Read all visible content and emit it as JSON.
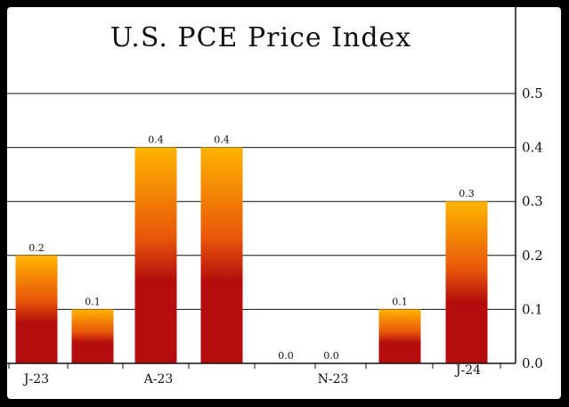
{
  "chart_data": {
    "type": "bar",
    "title": "U.S. PCE Price Index",
    "xlabel": "",
    "ylabel": "",
    "categories": [
      "J-23",
      "",
      "A-23",
      "",
      "",
      "N-23",
      "",
      "J-24"
    ],
    "values": [
      0.2,
      0.1,
      0.4,
      0.4,
      0.0,
      0.0,
      0.1,
      0.3
    ],
    "data_labels": [
      "0.2",
      "0.1",
      "0.4",
      "0.4",
      "0.0",
      "0.0",
      "0.1",
      "0.3"
    ],
    "y_ticks": [
      "0.0",
      "0.1",
      "0.2",
      "0.3",
      "0.4",
      "0.5"
    ],
    "ylim": [
      0,
      0.5
    ],
    "grid": true,
    "y_axis_side": "right",
    "colors": {
      "bar_top": "#ffb400",
      "bar_mid": "#e8560a",
      "bar_bottom": "#b50d0d",
      "frame": "#000000"
    }
  }
}
